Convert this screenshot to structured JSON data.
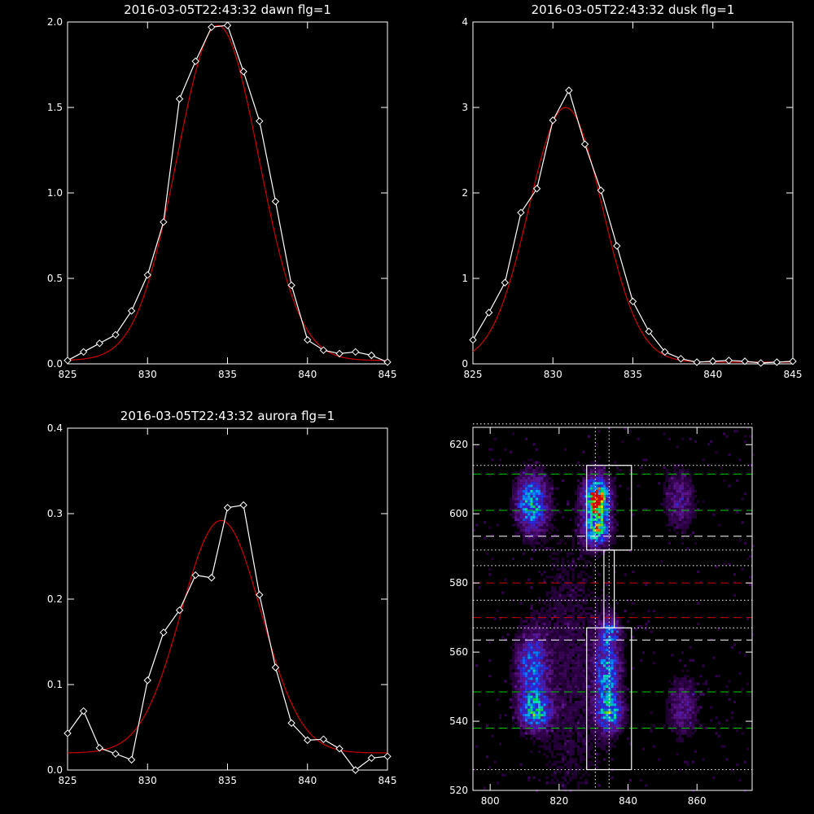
{
  "chart_data": [
    {
      "type": "line",
      "title": "2016-03-05T22:43:32 dawn flg=1",
      "xlim": [
        825,
        845
      ],
      "ylim": [
        0,
        2.0
      ],
      "xticks": [
        825,
        830,
        835,
        840,
        845
      ],
      "yticks": [
        0.0,
        0.5,
        1.0,
        1.5,
        2.0
      ],
      "yticklabels": [
        "0.0",
        "0.5",
        "1.0",
        "1.5",
        "2.0"
      ],
      "series": [
        {
          "kind": "observed",
          "color": "#ffffff",
          "marker": "diamond",
          "x": [
            825,
            826,
            827,
            828,
            829,
            830,
            831,
            832,
            833,
            834,
            835,
            836,
            837,
            838,
            839,
            840,
            841,
            842,
            843,
            844,
            845
          ],
          "y": [
            0.02,
            0.07,
            0.12,
            0.17,
            0.31,
            0.52,
            0.83,
            1.55,
            1.77,
            1.97,
            1.98,
            1.71,
            1.42,
            0.95,
            0.46,
            0.14,
            0.08,
            0.06,
            0.07,
            0.05,
            0.01
          ]
        },
        {
          "kind": "fit",
          "color": "#cc0000",
          "gauss": {
            "a": 1.96,
            "mu": 834.4,
            "sigma": 2.55,
            "b": 0.02
          }
        }
      ]
    },
    {
      "type": "line",
      "title": "2016-03-05T22:43:32 dusk flg=1",
      "xlim": [
        825,
        845
      ],
      "ylim": [
        0,
        4
      ],
      "xticks": [
        825,
        830,
        835,
        840,
        845
      ],
      "yticks": [
        0,
        1,
        2,
        3,
        4
      ],
      "yticklabels": [
        "0",
        "1",
        "2",
        "3",
        "4"
      ],
      "series": [
        {
          "kind": "observed",
          "color": "#ffffff",
          "marker": "diamond",
          "x": [
            825,
            826,
            827,
            828,
            829,
            830,
            831,
            832,
            833,
            834,
            835,
            836,
            837,
            838,
            839,
            840,
            841,
            842,
            843,
            844,
            845
          ],
          "y": [
            0.28,
            0.6,
            0.95,
            1.77,
            2.05,
            2.85,
            3.2,
            2.57,
            2.03,
            1.38,
            0.73,
            0.38,
            0.14,
            0.06,
            0.02,
            0.03,
            0.04,
            0.03,
            0.01,
            0.02,
            0.03
          ]
        },
        {
          "kind": "fit",
          "color": "#cc0000",
          "gauss": {
            "a": 2.98,
            "mu": 830.8,
            "sigma": 2.3,
            "b": 0.02
          }
        }
      ]
    },
    {
      "type": "line",
      "title": "2016-03-05T22:43:32 aurora flg=1",
      "xlim": [
        825,
        845
      ],
      "ylim": [
        0,
        0.4
      ],
      "xticks": [
        825,
        830,
        835,
        840,
        845
      ],
      "yticks": [
        0.0,
        0.1,
        0.2,
        0.3,
        0.4
      ],
      "yticklabels": [
        "0.0",
        "0.1",
        "0.2",
        "0.3",
        "0.4"
      ],
      "series": [
        {
          "kind": "observed",
          "color": "#ffffff",
          "marker": "diamond",
          "x": [
            825,
            826,
            827,
            828,
            829,
            830,
            831,
            832,
            833,
            834,
            835,
            836,
            837,
            838,
            839,
            840,
            841,
            842,
            843,
            844,
            845
          ],
          "y": [
            0.043,
            0.069,
            0.026,
            0.019,
            0.012,
            0.105,
            0.161,
            0.187,
            0.228,
            0.225,
            0.307,
            0.31,
            0.205,
            0.12,
            0.055,
            0.035,
            0.036,
            0.025,
            -0.002,
            0.014,
            0.016
          ]
        },
        {
          "kind": "fit",
          "color": "#cc0000",
          "gauss": {
            "a": 0.272,
            "mu": 834.6,
            "sigma": 2.5,
            "b": 0.02
          }
        }
      ]
    },
    {
      "type": "heatmap",
      "title": "",
      "xlim": [
        795,
        876
      ],
      "ylim": [
        520,
        625
      ],
      "xticks": [
        800,
        820,
        840,
        860
      ],
      "yticks": [
        520,
        540,
        560,
        580,
        600,
        620
      ],
      "blobs": [
        {
          "xc": 812,
          "yc": 603,
          "sx": 3.0,
          "sy": 5.5,
          "amp": 0.55
        },
        {
          "xc": 812,
          "yc": 556,
          "sx": 3.0,
          "sy": 6.5,
          "amp": 0.4
        },
        {
          "xc": 813,
          "yc": 543,
          "sx": 3.0,
          "sy": 3.5,
          "amp": 0.55
        },
        {
          "xc": 831,
          "yc": 604,
          "sx": 2.5,
          "sy": 4.5,
          "amp": 0.85
        },
        {
          "xc": 831,
          "yc": 595,
          "sx": 2.5,
          "sy": 3.0,
          "amp": 0.55
        },
        {
          "xc": 831,
          "yc": 604,
          "sx": 1.0,
          "sy": 1.5,
          "amp": 0.5
        },
        {
          "xc": 834,
          "yc": 553,
          "sx": 2.5,
          "sy": 9.0,
          "amp": 0.45
        },
        {
          "xc": 835,
          "yc": 542,
          "sx": 2.5,
          "sy": 3.0,
          "amp": 0.4
        },
        {
          "xc": 835,
          "yc": 566,
          "sx": 2.0,
          "sy": 2.5,
          "amp": 0.25
        },
        {
          "xc": 855,
          "yc": 604,
          "sx": 3.0,
          "sy": 6.0,
          "amp": 0.22
        },
        {
          "xc": 856,
          "yc": 544,
          "sx": 3.0,
          "sy": 6.0,
          "amp": 0.22
        },
        {
          "xc": 823,
          "yc": 555,
          "sx": 8.0,
          "sy": 30.0,
          "amp": 0.1
        }
      ],
      "hlines": [
        {
          "y": 626,
          "color": "#ffffff",
          "style": "dotted"
        },
        {
          "y": 614,
          "color": "#ffffff",
          "style": "dotted"
        },
        {
          "y": 611.5,
          "color": "#00cc00",
          "style": "dashed"
        },
        {
          "y": 601,
          "color": "#00cc00",
          "style": "dashed"
        },
        {
          "y": 593.5,
          "color": "#ffffff",
          "style": "dashed"
        },
        {
          "y": 589.5,
          "color": "#ffffff",
          "style": "dotted"
        },
        {
          "y": 585,
          "color": "#ffffff",
          "style": "dotted"
        },
        {
          "y": 580,
          "color": "#cc0000",
          "style": "dashed"
        },
        {
          "y": 575,
          "color": "#ffffff",
          "style": "dotted"
        },
        {
          "y": 570,
          "color": "#cc0000",
          "style": "dashed"
        },
        {
          "y": 567,
          "color": "#ffffff",
          "style": "dotted"
        },
        {
          "y": 563.5,
          "color": "#ffffff",
          "style": "dashed"
        },
        {
          "y": 548.5,
          "color": "#00cc00",
          "style": "dashed"
        },
        {
          "y": 538,
          "color": "#00cc00",
          "style": "dashed"
        },
        {
          "y": 526,
          "color": "#ffffff",
          "style": "dotted"
        }
      ],
      "vlines": [
        {
          "x": 830.5,
          "color": "#ffffff",
          "style": "dotted"
        },
        {
          "x": 834.5,
          "color": "#ffffff",
          "style": "dotted"
        }
      ],
      "boxes": [
        {
          "x0": 828,
          "x1": 841,
          "y0": 589.5,
          "y1": 614
        },
        {
          "x0": 828,
          "x1": 841,
          "y0": 526,
          "y1": 567
        },
        {
          "x0": 833,
          "x1": 836,
          "y0": 567,
          "y1": 589.5
        }
      ]
    }
  ]
}
